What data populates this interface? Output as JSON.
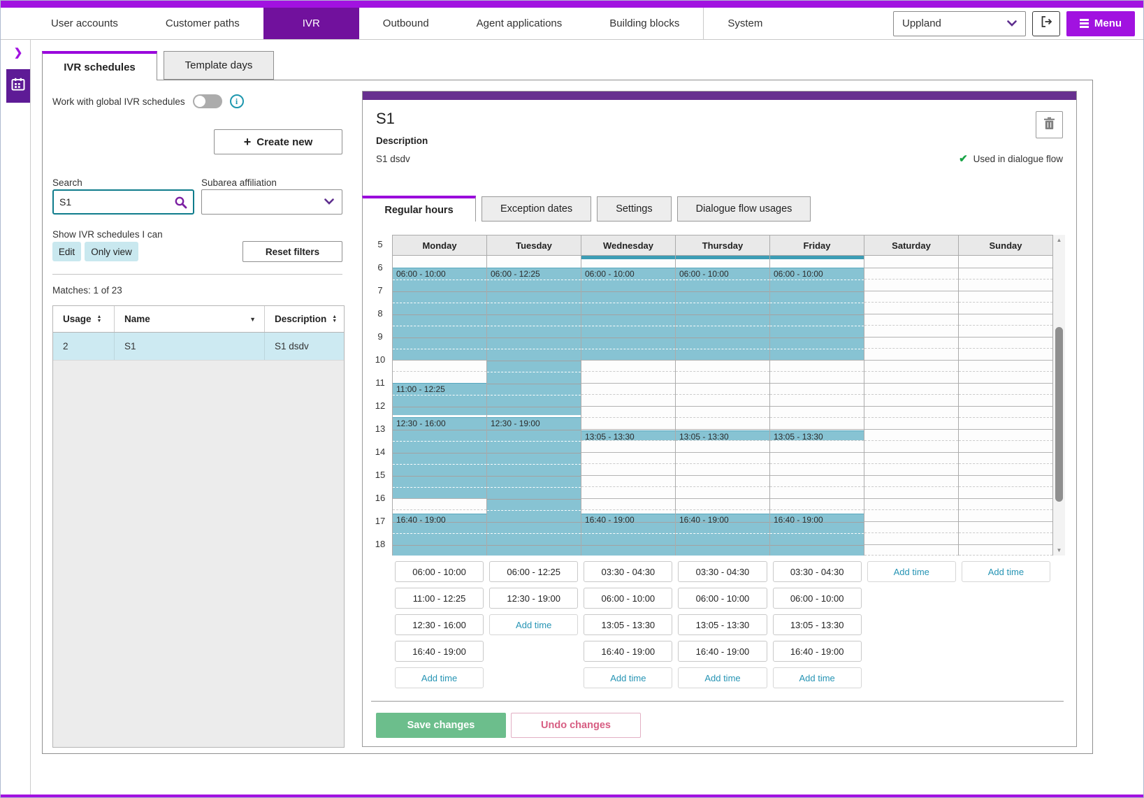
{
  "topnav": {
    "items": [
      "User accounts",
      "Customer paths",
      "IVR",
      "Outbound",
      "Agent applications",
      "Building blocks",
      "System"
    ],
    "active_item": "IVR",
    "region_value": "Uppland",
    "menu_label": "Menu"
  },
  "main_tabs": {
    "items": [
      "IVR schedules",
      "Template days"
    ],
    "active": "IVR schedules"
  },
  "filters": {
    "global_toggle_label": "Work with global IVR schedules",
    "toggle_on": false,
    "create_plus": "+",
    "create_label": "Create new",
    "search_label": "Search",
    "search_value": "S1",
    "subarea_label": "Subarea affiliation",
    "subarea_value": "",
    "show_label": "Show IVR schedules I can",
    "edit_label": "Edit",
    "only_view_label": "Only view",
    "reset_label": "Reset filters",
    "matches_text": "Matches: 1 of 23"
  },
  "schedule_table": {
    "columns": [
      "Usage",
      "Name",
      "Description"
    ],
    "sorted_column": "Name",
    "rows": [
      {
        "usage": "2",
        "name": "S1",
        "description": "S1 dsdv"
      }
    ]
  },
  "detail": {
    "title": "S1",
    "description_label": "Description",
    "description": "S1 dsdv",
    "used_text": "Used in dialogue flow",
    "tabs": [
      "Regular hours",
      "Exception dates",
      "Settings",
      "Dialogue flow usages"
    ],
    "active_tab": "Regular hours",
    "add_time_label": "Add time",
    "save_label": "Save changes",
    "undo_label": "Undo changes"
  },
  "calendar": {
    "visible_start": "05:30",
    "visible_end": "18:30",
    "hour_labels": [
      5,
      6,
      7,
      8,
      9,
      10,
      11,
      12,
      13,
      14,
      15,
      16,
      17,
      18
    ],
    "event_color": "#87C3D3",
    "indicator_color": "#3D9DB5",
    "days": [
      {
        "name": "Monday",
        "times": [
          {
            "start": "06:00",
            "end": "10:00"
          },
          {
            "start": "11:00",
            "end": "12:25"
          },
          {
            "start": "12:30",
            "end": "16:00"
          },
          {
            "start": "16:40",
            "end": "19:00"
          }
        ]
      },
      {
        "name": "Tuesday",
        "times": [
          {
            "start": "06:00",
            "end": "12:25"
          },
          {
            "start": "12:30",
            "end": "19:00"
          }
        ]
      },
      {
        "name": "Wednesday",
        "times": [
          {
            "start": "03:30",
            "end": "04:30"
          },
          {
            "start": "06:00",
            "end": "10:00"
          },
          {
            "start": "13:05",
            "end": "13:30"
          },
          {
            "start": "16:40",
            "end": "19:00"
          }
        ]
      },
      {
        "name": "Thursday",
        "times": [
          {
            "start": "03:30",
            "end": "04:30"
          },
          {
            "start": "06:00",
            "end": "10:00"
          },
          {
            "start": "13:05",
            "end": "13:30"
          },
          {
            "start": "16:40",
            "end": "19:00"
          }
        ]
      },
      {
        "name": "Friday",
        "times": [
          {
            "start": "03:30",
            "end": "04:30"
          },
          {
            "start": "06:00",
            "end": "10:00"
          },
          {
            "start": "13:05",
            "end": "13:30"
          },
          {
            "start": "16:40",
            "end": "19:00"
          }
        ]
      },
      {
        "name": "Saturday",
        "times": []
      },
      {
        "name": "Sunday",
        "times": []
      }
    ]
  }
}
